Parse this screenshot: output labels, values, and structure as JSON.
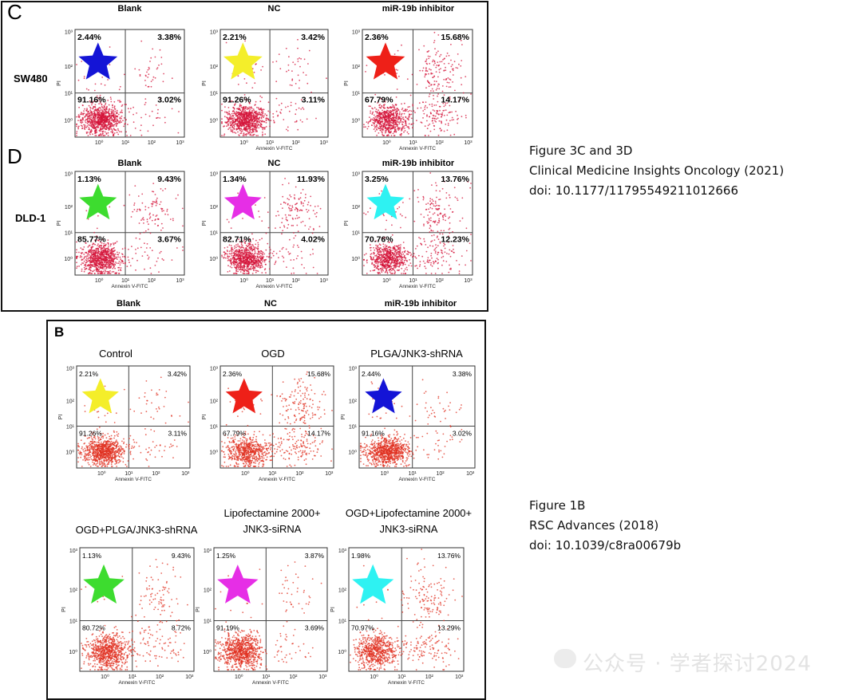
{
  "figures": {
    "top": {
      "panel_c_letter": "C",
      "panel_d_letter": "D",
      "row_c_label": "SW480",
      "row_d_label": "DLD-1",
      "bottom_titles": [
        "Blank",
        "NC",
        "miR-19b inhibitor"
      ]
    },
    "bottom": {
      "panel_letter": "B"
    }
  },
  "captions": {
    "top": [
      "Figure 3C and 3D",
      "Clinical Medicine Insights Oncology (2021)",
      "doi: 10.1177/11795549211012666"
    ],
    "bottom": [
      "Figure 1B",
      "RSC Advances (2018)",
      "doi: 10.1039/c8ra00679b"
    ]
  },
  "watermark": "公众号 · 学者探讨2024",
  "colors": {
    "blue": "#1414d6",
    "yellow": "#f4ee2a",
    "red": "#ee2018",
    "green": "#3ddc2f",
    "magenta": "#e62ee6",
    "cyan": "#2ef2f2",
    "dots_top": "#d4143a",
    "dots_bottom": "#e03020"
  },
  "chart_data": [
    {
      "type": "scatter",
      "group": "top",
      "title": "Blank",
      "row": "SW480",
      "xlabel": "",
      "ylabel": "PI",
      "x_ticks": [
        "10⁰",
        "10¹",
        "10²",
        "10³"
      ],
      "y_ticks": [
        "10⁰",
        "10¹",
        "10²",
        "10³"
      ],
      "quadrants": {
        "UL": "2.44%",
        "UR": "3.38%",
        "LL": "91.16%",
        "LR": "3.02%"
      },
      "marker": "blue"
    },
    {
      "type": "scatter",
      "group": "top",
      "title": "NC",
      "row": "SW480",
      "xlabel": "Annexin V-FITC",
      "ylabel": "PI",
      "x_ticks": [
        "10⁰",
        "10¹",
        "10²",
        "10³"
      ],
      "y_ticks": [
        "10⁰",
        "10¹",
        "10²",
        "10³"
      ],
      "quadrants": {
        "UL": "2.21%",
        "UR": "3.42%",
        "LL": "91.26%",
        "LR": "3.11%"
      },
      "marker": "yellow"
    },
    {
      "type": "scatter",
      "group": "top",
      "title": "miR-19b inhibitor",
      "row": "SW480",
      "xlabel": "Annexin V-FITC",
      "ylabel": "PI",
      "x_ticks": [
        "10⁰",
        "10¹",
        "10²",
        "10³"
      ],
      "y_ticks": [
        "10⁰",
        "10¹",
        "10²",
        "10³"
      ],
      "quadrants": {
        "UL": "2.36%",
        "UR": "15.68%",
        "LL": "67.79%",
        "LR": "14.17%"
      },
      "marker": "red"
    },
    {
      "type": "scatter",
      "group": "top",
      "title": "Blank",
      "row": "DLD-1",
      "xlabel": "Annexin V-FITC",
      "ylabel": "PI",
      "x_ticks": [
        "10⁰",
        "10¹",
        "10²",
        "10³"
      ],
      "y_ticks": [
        "10⁰",
        "10¹",
        "10²",
        "10³"
      ],
      "quadrants": {
        "UL": "1.13%",
        "UR": "9.43%",
        "LL": "85.77%",
        "LR": "3.67%"
      },
      "marker": "green"
    },
    {
      "type": "scatter",
      "group": "top",
      "title": "NC",
      "row": "DLD-1",
      "xlabel": "Annexin V-FITC",
      "ylabel": "PI",
      "x_ticks": [
        "10⁰",
        "10¹",
        "10²",
        "10³"
      ],
      "y_ticks": [
        "10⁰",
        "10¹",
        "10²",
        "10³"
      ],
      "quadrants": {
        "UL": "1.34%",
        "UR": "11.93%",
        "LL": "82.71%",
        "LR": "4.02%"
      },
      "marker": "magenta"
    },
    {
      "type": "scatter",
      "group": "top",
      "title": "miR-19b inhibitor",
      "row": "DLD-1",
      "xlabel": "Annexin V-FITC",
      "ylabel": "PI",
      "x_ticks": [
        "10⁰",
        "10¹",
        "10²",
        "10³"
      ],
      "y_ticks": [
        "10⁰",
        "10¹",
        "10²",
        "10³"
      ],
      "quadrants": {
        "UL": "3.25%",
        "UR": "13.76%",
        "LL": "70.76%",
        "LR": "12.23%"
      },
      "marker": "cyan"
    },
    {
      "type": "scatter",
      "group": "bottom",
      "title": "Control",
      "xlabel": "Annexin V-FITC",
      "ylabel": "PI",
      "x_ticks": [
        "10⁰",
        "10¹",
        "10²",
        "10³"
      ],
      "y_ticks": [
        "10⁰",
        "10¹",
        "10²",
        "10³"
      ],
      "quadrants": {
        "UL": "2.21%",
        "UR": "3.42%",
        "LL": "91.26%",
        "LR": "3.11%"
      },
      "marker": "yellow"
    },
    {
      "type": "scatter",
      "group": "bottom",
      "title": "OGD",
      "xlabel": "Annexin V-FITC",
      "ylabel": "PI",
      "x_ticks": [
        "10⁰",
        "10¹",
        "10²",
        "10³"
      ],
      "y_ticks": [
        "10⁰",
        "10¹",
        "10²",
        "10³"
      ],
      "quadrants": {
        "UL": "2.36%",
        "UR": "15.68%",
        "LL": "67.79%",
        "LR": "14.17%"
      },
      "marker": "red"
    },
    {
      "type": "scatter",
      "group": "bottom",
      "title": "PLGA/JNK3-shRNA",
      "xlabel": "Annexin V-FITC",
      "ylabel": "PI",
      "x_ticks": [
        "10⁰",
        "10¹",
        "10²",
        "10³"
      ],
      "y_ticks": [
        "10⁰",
        "10¹",
        "10²",
        "10³"
      ],
      "quadrants": {
        "UL": "2.44%",
        "UR": "3.38%",
        "LL": "91.16%",
        "LR": "3.02%"
      },
      "marker": "blue"
    },
    {
      "type": "scatter",
      "group": "bottom",
      "title": "OGD+PLGA/JNK3-shRNA",
      "xlabel": "Annexin V-FITC",
      "ylabel": "PI",
      "x_ticks": [
        "10⁰",
        "10¹",
        "10²",
        "10³"
      ],
      "y_ticks": [
        "10⁰",
        "10¹",
        "10²",
        "10³"
      ],
      "quadrants": {
        "UL": "1.13%",
        "UR": "9.43%",
        "LL": "80.72%",
        "LR": "8.72%"
      },
      "marker": "green"
    },
    {
      "type": "scatter",
      "group": "bottom",
      "title": "Lipofectamine 2000+\nJNK3-siRNA",
      "xlabel": "Annexin V-FITC",
      "ylabel": "PI",
      "x_ticks": [
        "10⁰",
        "10¹",
        "10²",
        "10³"
      ],
      "y_ticks": [
        "10⁰",
        "10¹",
        "10²",
        "10³"
      ],
      "quadrants": {
        "UL": "1.25%",
        "UR": "3.87%",
        "LL": "91.19%",
        "LR": "3.69%"
      },
      "marker": "magenta"
    },
    {
      "type": "scatter",
      "group": "bottom",
      "title": "OGD+Lipofectamine 2000+\nJNK3-siRNA",
      "xlabel": "Annexin V-FITC",
      "ylabel": "PI",
      "x_ticks": [
        "10⁰",
        "10¹",
        "10²",
        "10³"
      ],
      "y_ticks": [
        "10⁰",
        "10¹",
        "10²",
        "10³"
      ],
      "quadrants": {
        "UL": "1.98%",
        "UR": "13.76%",
        "LL": "70.97%",
        "LR": "13.29%"
      },
      "marker": "cyan"
    }
  ]
}
